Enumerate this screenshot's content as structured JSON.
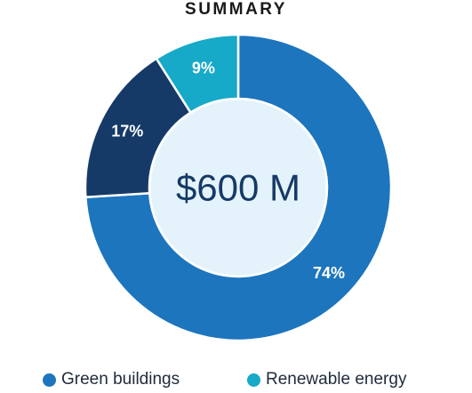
{
  "chart_data": {
    "type": "pie",
    "title": "SUMMARY",
    "center_label": "$600 M",
    "slices": [
      {
        "label": "Green buildings",
        "value": 74,
        "value_label": "74%",
        "color": "#1d75bd"
      },
      {
        "value": 17,
        "value_label": "17%",
        "color": "#163a67"
      },
      {
        "label": "Renewable energy",
        "value": 9,
        "value_label": "9%",
        "color": "#17a9c8"
      }
    ],
    "center_fill": "#e4f3fb",
    "legend_position": "bottom"
  }
}
